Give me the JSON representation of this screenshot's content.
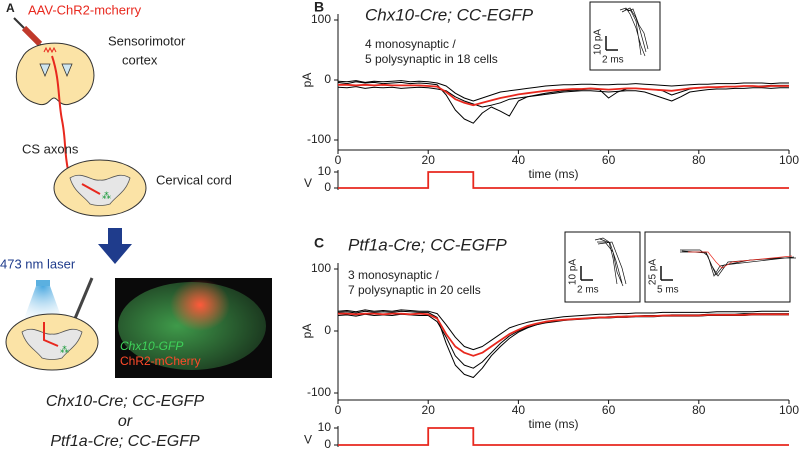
{
  "panel_a": {
    "label": "A",
    "virus": "AAV-ChR2-mcherry",
    "cortex": [
      "Sensorimotor",
      "cortex"
    ],
    "axons": "CS axons",
    "cord": "Cervical cord",
    "laser": "473 nm laser",
    "image_labels": [
      "Chx10-GFP",
      "ChR2-mCherry"
    ],
    "genotypes": [
      "Chx10-Cre; CC-EGFP",
      "or",
      "Ptf1a-Cre; CC-EGFP"
    ]
  },
  "chart_data": [
    {
      "type": "line",
      "label": "B",
      "title": "Chx10-Cre; CC-EGFP",
      "annotation": [
        "4 monosynaptic /",
        "5 polysynaptic in 18 cells"
      ],
      "insets": [
        {
          "y_scale": "10 pA",
          "x_scale": "2 ms"
        }
      ],
      "ylabel": "pA",
      "xlabel": "time (ms)",
      "x": [
        0,
        2,
        4,
        6,
        8,
        10,
        12,
        14,
        16,
        18,
        20,
        22,
        24,
        26,
        28,
        30,
        32,
        34,
        36,
        38,
        40,
        42,
        44,
        46,
        48,
        50,
        52,
        54,
        56,
        58,
        60,
        62,
        64,
        66,
        68,
        70,
        72,
        74,
        76,
        78,
        80,
        82,
        84,
        86,
        88,
        90,
        92,
        94,
        96,
        98,
        100
      ],
      "xlim": [
        0,
        100
      ],
      "xticks": [
        0,
        20,
        40,
        60,
        80,
        100
      ],
      "ylim": [
        -100,
        100
      ],
      "yticks": [
        -100,
        0,
        100
      ],
      "series": [
        {
          "color": "#000000",
          "values": [
            -4,
            -6,
            -3,
            -5,
            -4,
            -6,
            -5,
            -4,
            -6,
            -5,
            -6,
            -8,
            -25,
            -50,
            -65,
            -72,
            -55,
            -45,
            -52,
            -60,
            -35,
            -28,
            -25,
            -22,
            -20,
            -18,
            -17,
            -16,
            -15,
            -16,
            -30,
            -20,
            -15,
            -14,
            -15,
            -16,
            -18,
            -25,
            -20,
            -15,
            -13,
            -12,
            -12,
            -11,
            -11,
            -10,
            -10,
            -10,
            -9,
            -9,
            -9
          ]
        },
        {
          "color": "#000000",
          "values": [
            -12,
            -13,
            -11,
            -14,
            -12,
            -13,
            -12,
            -14,
            -13,
            -12,
            -13,
            -15,
            -18,
            -28,
            -35,
            -40,
            -45,
            -42,
            -38,
            -32,
            -30,
            -28,
            -26,
            -24,
            -22,
            -20,
            -19,
            -18,
            -18,
            -19,
            -20,
            -19,
            -18,
            -18,
            -20,
            -25,
            -30,
            -35,
            -28,
            -20,
            -18,
            -16,
            -15,
            -15,
            -14,
            -14,
            -13,
            -13,
            -14,
            -13,
            -13
          ]
        },
        {
          "color": "#000000",
          "values": [
            -2,
            -3,
            -1,
            -4,
            -2,
            -3,
            -2,
            -1,
            -3,
            -2,
            -3,
            -5,
            -10,
            -22,
            -30,
            -35,
            -30,
            -25,
            -20,
            -18,
            -16,
            -14,
            -12,
            -10,
            -9,
            -8,
            -8,
            -7,
            -7,
            -8,
            -8,
            -7,
            -7,
            -6,
            -7,
            -8,
            -9,
            -10,
            -9,
            -8,
            -7,
            -7,
            -6,
            -6,
            -6,
            -5,
            -5,
            -5,
            -6,
            -5,
            -5
          ]
        },
        {
          "color": "#e8281e",
          "values": [
            -8,
            -8,
            -9,
            -8,
            -9,
            -8,
            -9,
            -9,
            -9,
            -9,
            -10,
            -11,
            -20,
            -32,
            -38,
            -42,
            -38,
            -34,
            -30,
            -27,
            -24,
            -22,
            -20,
            -18,
            -17,
            -16,
            -15,
            -15,
            -14,
            -15,
            -16,
            -15,
            -14,
            -14,
            -15,
            -16,
            -17,
            -18,
            -16,
            -14,
            -13,
            -12,
            -12,
            -11,
            -11,
            -10,
            -10,
            -11,
            -10,
            -10,
            -10
          ]
        }
      ],
      "stimulus": {
        "ylabel": "V",
        "x": [
          0,
          20,
          20,
          30,
          30,
          100
        ],
        "values": [
          0,
          0,
          10,
          10,
          0,
          0
        ],
        "ylim": [
          0,
          10
        ],
        "yticks": [
          0,
          10
        ],
        "color": "#e8281e"
      }
    },
    {
      "type": "line",
      "label": "C",
      "title": "Ptf1a-Cre; CC-EGFP",
      "annotation": [
        "3 monosynaptic /",
        "7 polysynaptic in 20 cells"
      ],
      "insets": [
        {
          "y_scale": "10 pA",
          "x_scale": "2 ms"
        },
        {
          "y_scale": "25 pA",
          "x_scale": "5 ms"
        }
      ],
      "ylabel": "pA",
      "xlabel": "time (ms)",
      "x": [
        0,
        2,
        4,
        6,
        8,
        10,
        12,
        14,
        16,
        18,
        20,
        22,
        24,
        26,
        28,
        30,
        32,
        34,
        36,
        38,
        40,
        42,
        44,
        46,
        48,
        50,
        52,
        54,
        56,
        58,
        60,
        62,
        64,
        66,
        68,
        70,
        72,
        74,
        76,
        78,
        80,
        82,
        84,
        86,
        88,
        90,
        92,
        94,
        96,
        98,
        100
      ],
      "xlim": [
        0,
        100
      ],
      "xticks": [
        0,
        20,
        40,
        60,
        80,
        100
      ],
      "ylim": [
        -100,
        100
      ],
      "yticks": [
        -100,
        0,
        100
      ],
      "series": [
        {
          "color": "#000000",
          "values": [
            30,
            31,
            29,
            32,
            30,
            31,
            30,
            32,
            31,
            30,
            30,
            22,
            -20,
            -55,
            -70,
            -75,
            -60,
            -40,
            -25,
            -12,
            -2,
            5,
            10,
            14,
            16,
            18,
            19,
            20,
            21,
            22,
            23,
            23,
            24,
            24,
            25,
            25,
            25,
            26,
            26,
            26,
            26,
            27,
            27,
            27,
            27,
            28,
            28,
            28,
            28,
            28,
            28
          ]
        },
        {
          "color": "#000000",
          "values": [
            25,
            26,
            24,
            27,
            25,
            26,
            25,
            27,
            26,
            25,
            25,
            15,
            -10,
            -40,
            -55,
            -60,
            -50,
            -35,
            -20,
            -8,
            0,
            6,
            10,
            13,
            15,
            17,
            18,
            19,
            20,
            21,
            21,
            22,
            22,
            23,
            23,
            23,
            24,
            24,
            24,
            24,
            24,
            25,
            25,
            25,
            25,
            25,
            26,
            26,
            26,
            26,
            26
          ]
        },
        {
          "color": "#000000",
          "values": [
            32,
            33,
            31,
            34,
            32,
            33,
            32,
            34,
            33,
            32,
            32,
            28,
            10,
            -10,
            -25,
            -30,
            -25,
            -15,
            -5,
            5,
            10,
            14,
            17,
            19,
            21,
            23,
            24,
            25,
            26,
            27,
            27,
            28,
            28,
            29,
            29,
            29,
            30,
            30,
            30,
            30,
            30,
            30,
            31,
            31,
            31,
            31,
            31,
            32,
            32,
            32,
            32
          ]
        },
        {
          "color": "#e8281e",
          "values": [
            28,
            28,
            27,
            28,
            28,
            27,
            28,
            28,
            27,
            28,
            27,
            20,
            -5,
            -25,
            -35,
            -40,
            -35,
            -25,
            -15,
            -5,
            2,
            8,
            12,
            15,
            17,
            18,
            19,
            20,
            21,
            22,
            22,
            23,
            23,
            24,
            24,
            24,
            25,
            25,
            25,
            25,
            25,
            26,
            26,
            26,
            26,
            26,
            27,
            27,
            27,
            27,
            27
          ]
        }
      ],
      "stimulus": {
        "ylabel": "V",
        "x": [
          0,
          20,
          20,
          30,
          30,
          100
        ],
        "values": [
          0,
          0,
          10,
          10,
          0,
          0
        ],
        "ylim": [
          0,
          10
        ],
        "yticks": [
          0,
          10
        ],
        "color": "#e8281e"
      }
    }
  ]
}
